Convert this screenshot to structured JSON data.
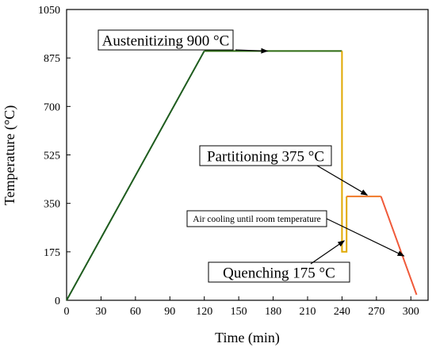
{
  "chart_data": {
    "type": "line",
    "xlabel": "Time (min)",
    "ylabel": "Temperature (°C)",
    "xlim": [
      0,
      315
    ],
    "ylim": [
      0,
      1050
    ],
    "xticks": [
      0,
      30,
      60,
      90,
      120,
      150,
      180,
      210,
      240,
      270,
      300
    ],
    "yticks": [
      0,
      175,
      350,
      525,
      700,
      875,
      1050
    ],
    "grid": false,
    "legend": "none",
    "series": [
      {
        "color": "#1e5c1e",
        "points": [
          [
            0,
            0
          ],
          [
            120,
            900
          ]
        ]
      },
      {
        "color": "#2e6b12",
        "points": [
          [
            120,
            900
          ],
          [
            240,
            900
          ]
        ]
      },
      {
        "color": "#e0a800",
        "points": [
          [
            240,
            900
          ],
          [
            240,
            175
          ],
          [
            244,
            175
          ],
          [
            244,
            375
          ]
        ]
      },
      {
        "color": "#f07828",
        "points": [
          [
            244,
            375
          ],
          [
            274,
            375
          ]
        ]
      },
      {
        "color": "#f05a3a",
        "points": [
          [
            274,
            375
          ],
          [
            305,
            20
          ]
        ]
      }
    ],
    "annotations": [
      {
        "text": "Austenitizing 900 °C",
        "boxed": true,
        "arrow_to": [
          175,
          900
        ]
      },
      {
        "text": "Partitioning 375 °C",
        "boxed": true,
        "arrow_to": [
          262,
          380
        ]
      },
      {
        "text": "Air cooling until room temperature",
        "boxed": true,
        "arrow_to": [
          294,
          160
        ]
      },
      {
        "text": "Quenching 175 °C",
        "boxed": true,
        "arrow_to": [
          242,
          215
        ]
      }
    ]
  }
}
